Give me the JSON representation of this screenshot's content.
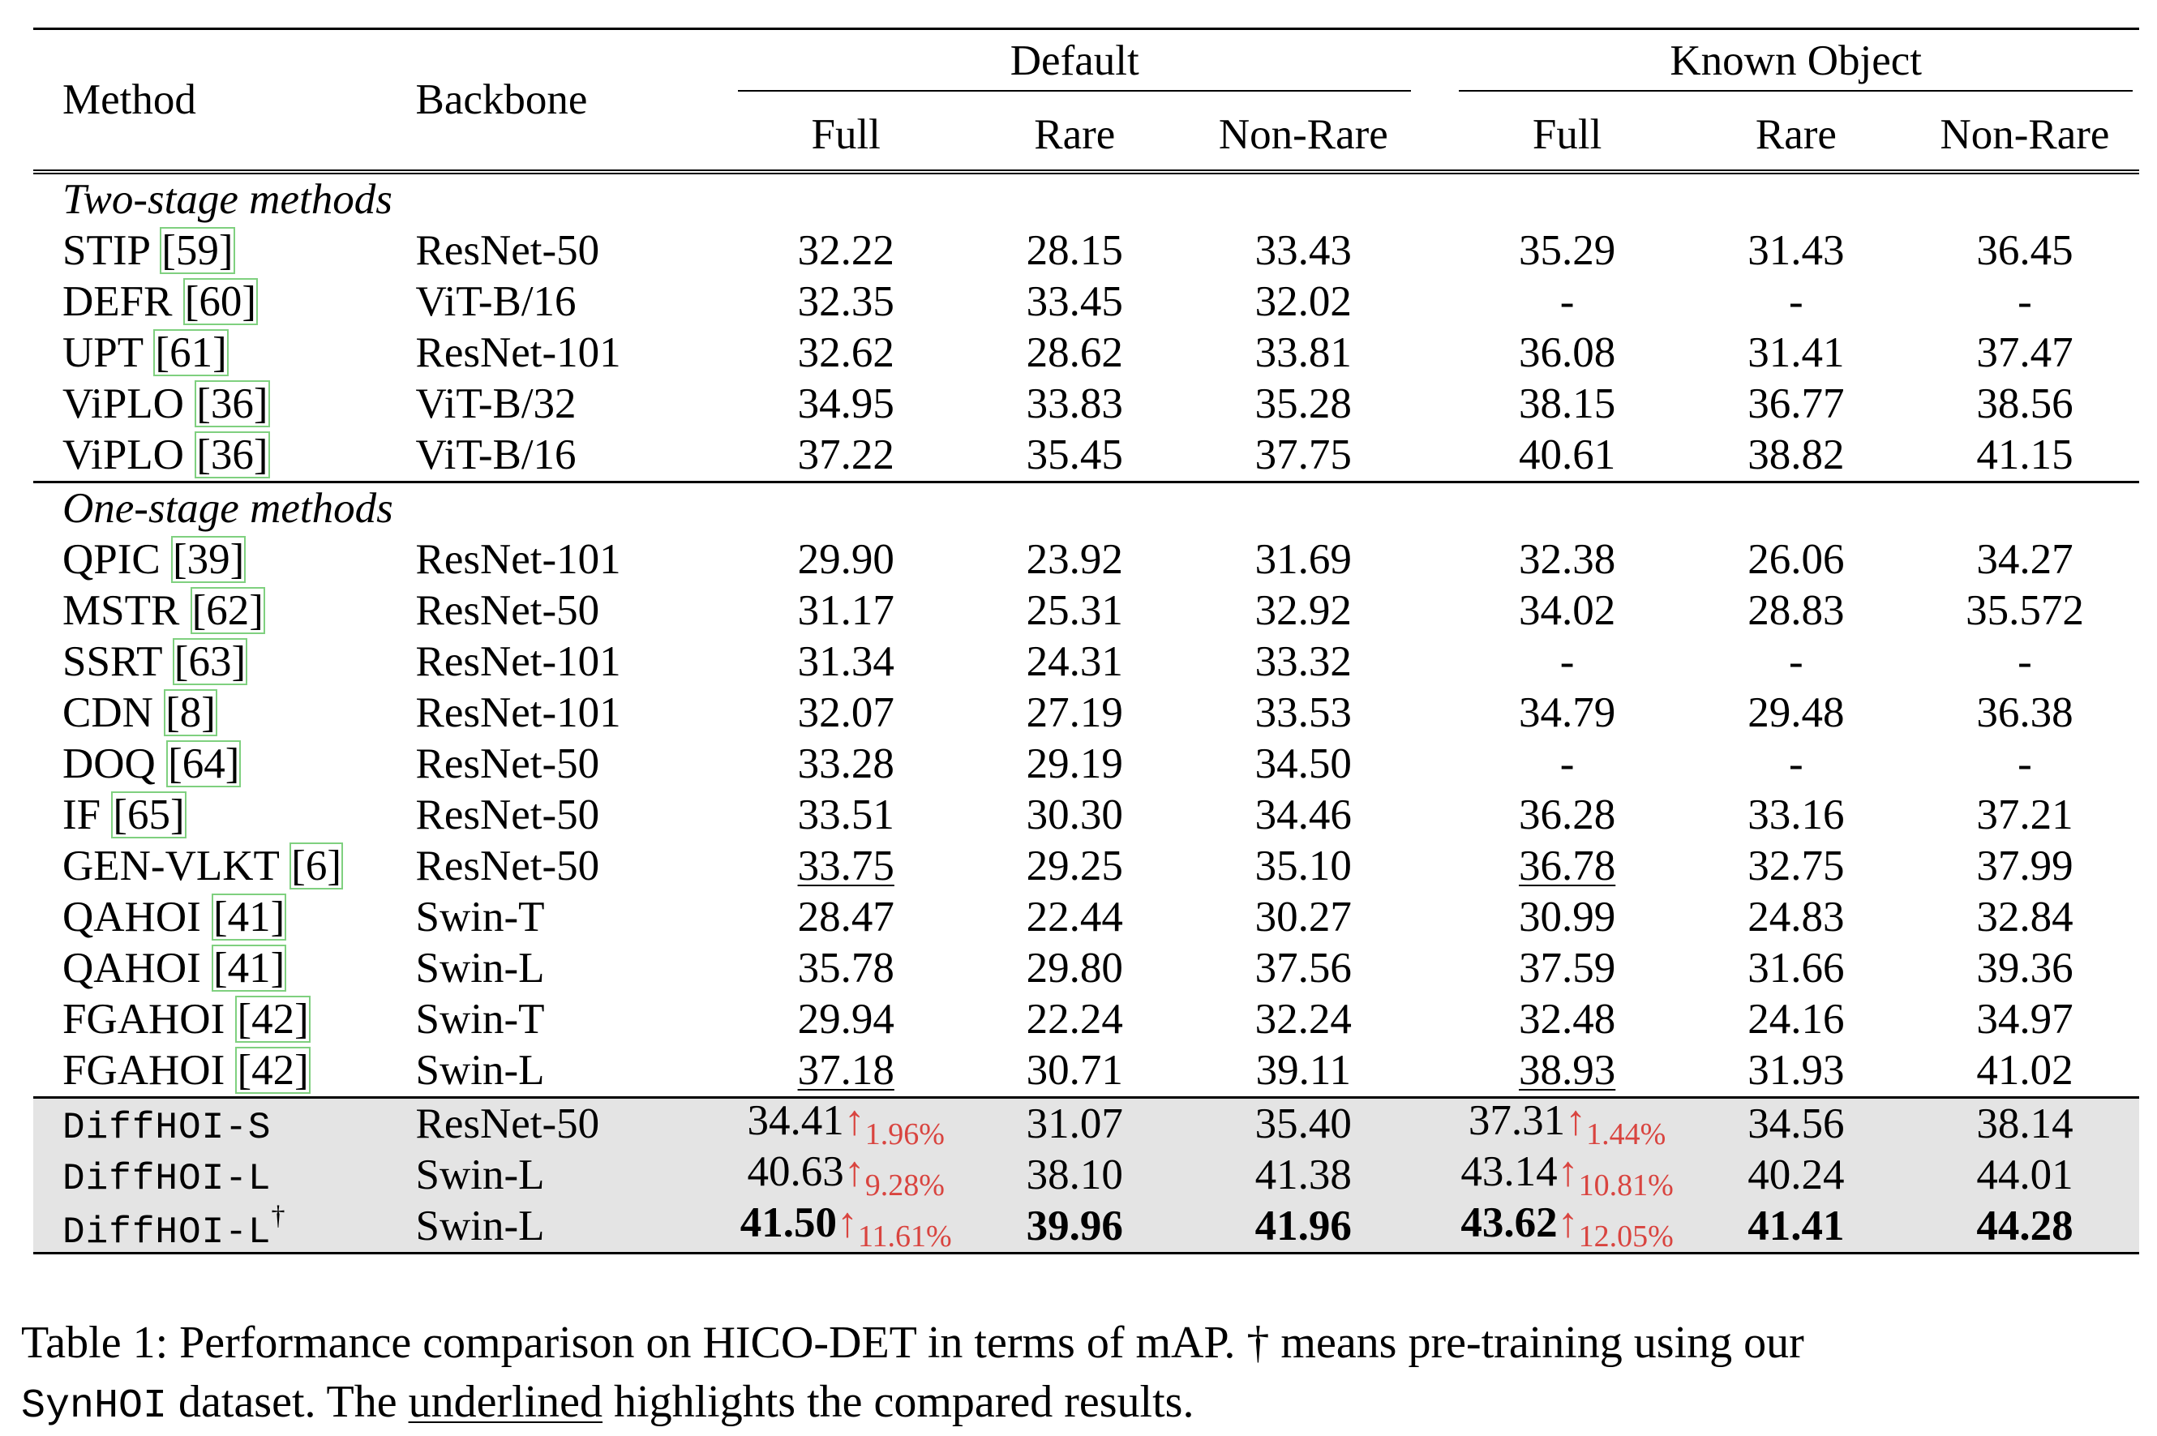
{
  "table": {
    "headers": {
      "method": "Method",
      "backbone": "Backbone",
      "groups": [
        "Default",
        "Known Object"
      ],
      "sub": [
        "Full",
        "Rare",
        "Non-Rare",
        "Full",
        "Rare",
        "Non-Rare"
      ]
    },
    "sections": [
      {
        "title": "Two-stage methods",
        "rows": [
          {
            "name": "STIP",
            "ref": "[59]",
            "backbone": "ResNet-50",
            "values": [
              "32.22",
              "28.15",
              "33.43",
              "35.29",
              "31.43",
              "36.45"
            ]
          },
          {
            "name": "DEFR",
            "ref": "[60]",
            "backbone": "ViT-B/16",
            "values": [
              "32.35",
              "33.45",
              "32.02",
              "-",
              "-",
              "-"
            ]
          },
          {
            "name": "UPT",
            "ref": "[61]",
            "backbone": "ResNet-101",
            "values": [
              "32.62",
              "28.62",
              "33.81",
              "36.08",
              "31.41",
              "37.47"
            ]
          },
          {
            "name": "ViPLO",
            "ref": "[36]",
            "backbone": "ViT-B/32",
            "values": [
              "34.95",
              "33.83",
              "35.28",
              "38.15",
              "36.77",
              "38.56"
            ]
          },
          {
            "name": "ViPLO",
            "ref": "[36]",
            "backbone": "ViT-B/16",
            "values": [
              "37.22",
              "35.45",
              "37.75",
              "40.61",
              "38.82",
              "41.15"
            ]
          }
        ]
      },
      {
        "title": "One-stage methods",
        "rows": [
          {
            "name": "QPIC",
            "ref": "[39]",
            "backbone": "ResNet-101",
            "values": [
              "29.90",
              "23.92",
              "31.69",
              "32.38",
              "26.06",
              "34.27"
            ]
          },
          {
            "name": "MSTR",
            "ref": "[62]",
            "backbone": "ResNet-50",
            "values": [
              "31.17",
              "25.31",
              "32.92",
              "34.02",
              "28.83",
              "35.572"
            ]
          },
          {
            "name": "SSRT",
            "ref": "[63]",
            "backbone": "ResNet-101",
            "values": [
              "31.34",
              "24.31",
              "33.32",
              "-",
              "-",
              "-"
            ]
          },
          {
            "name": "CDN",
            "ref": "[8]",
            "backbone": "ResNet-101",
            "values": [
              "32.07",
              "27.19",
              "33.53",
              "34.79",
              "29.48",
              "36.38"
            ]
          },
          {
            "name": "DOQ",
            "ref": "[64]",
            "backbone": "ResNet-50",
            "values": [
              "33.28",
              "29.19",
              "34.50",
              "-",
              "-",
              "-"
            ]
          },
          {
            "name": "IF",
            "ref": "[65]",
            "backbone": "ResNet-50",
            "values": [
              "33.51",
              "30.30",
              "34.46",
              "36.28",
              "33.16",
              "37.21"
            ]
          },
          {
            "name": "GEN-VLKT",
            "ref": "[6]",
            "backbone": "ResNet-50",
            "values": [
              "33.75",
              "29.25",
              "35.10",
              "36.78",
              "32.75",
              "37.99"
            ],
            "underlined": [
              0,
              3
            ]
          },
          {
            "name": "QAHOI",
            "ref": "[41]",
            "backbone": "Swin-T",
            "values": [
              "28.47",
              "22.44",
              "30.27",
              "30.99",
              "24.83",
              "32.84"
            ]
          },
          {
            "name": "QAHOI",
            "ref": "[41]",
            "backbone": "Swin-L",
            "values": [
              "35.78",
              "29.80",
              "37.56",
              "37.59",
              "31.66",
              "39.36"
            ]
          },
          {
            "name": "FGAHOI",
            "ref": "[42]",
            "backbone": "Swin-T",
            "values": [
              "29.94",
              "22.24",
              "32.24",
              "32.48",
              "24.16",
              "34.97"
            ]
          },
          {
            "name": "FGAHOI",
            "ref": "[42]",
            "backbone": "Swin-L",
            "values": [
              "37.18",
              "30.71",
              "39.11",
              "38.93",
              "31.93",
              "41.02"
            ],
            "underlined": [
              0,
              3
            ]
          }
        ]
      }
    ],
    "ours": [
      {
        "name": "DiffHOI-S",
        "dagger": "",
        "backbone": "ResNet-50",
        "values": [
          "34.41",
          "31.07",
          "35.40",
          "37.31",
          "34.56",
          "38.14"
        ],
        "gains": [
          "1.96%",
          "",
          "",
          "1.44%",
          "",
          ""
        ],
        "bold": false
      },
      {
        "name": "DiffHOI-L",
        "dagger": "",
        "backbone": "Swin-L",
        "values": [
          "40.63",
          "38.10",
          "41.38",
          "43.14",
          "40.24",
          "44.01"
        ],
        "gains": [
          "9.28%",
          "",
          "",
          "10.81%",
          "",
          ""
        ],
        "bold": false
      },
      {
        "name": "DiffHOI-L",
        "dagger": "†",
        "backbone": "Swin-L",
        "values": [
          "41.50",
          "39.96",
          "41.96",
          "43.62",
          "41.41",
          "44.28"
        ],
        "gains": [
          "11.61%",
          "",
          "",
          "12.05%",
          "",
          ""
        ],
        "bold": true
      }
    ],
    "gain_arrow": "↑"
  },
  "caption": {
    "part1": "Table 1: Performance comparison on HICO-DET in terms of mAP. † means pre-training using our",
    "dataset": "SynHOI",
    "part2": " dataset. The ",
    "underlined_word": "underlined",
    "part3": " highlights the compared results."
  },
  "colors": {
    "gain": "#d9443f",
    "ours_row_bg": "#e4e4e4",
    "citation_box": "#7fd07f"
  }
}
